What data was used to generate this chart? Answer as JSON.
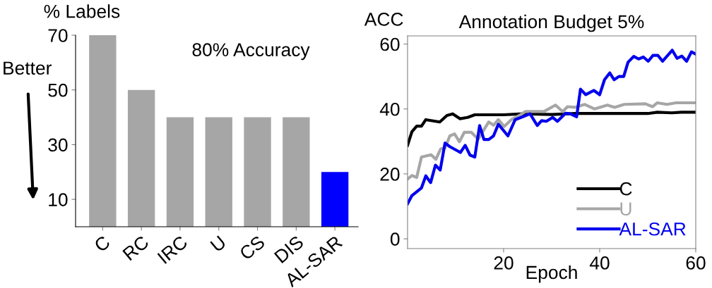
{
  "chart_data": [
    {
      "type": "bar",
      "title": "80% Accuracy",
      "ylabel": "% Labels",
      "categories": [
        "C",
        "RC",
        "IRC",
        "U",
        "CS",
        "DIS",
        "AL-SAR"
      ],
      "values": [
        70,
        50,
        40,
        40,
        40,
        40,
        20
      ],
      "colors": [
        "#a6a6a6",
        "#a6a6a6",
        "#a6a6a6",
        "#a6a6a6",
        "#a6a6a6",
        "#a6a6a6",
        "#0000ff"
      ],
      "ylim": [
        0,
        70
      ],
      "yticks": [
        10,
        30,
        50,
        70
      ],
      "annotations": [
        "Better"
      ],
      "grid": false
    },
    {
      "type": "line",
      "title": "Annotation Budget 5%",
      "xlabel": "Epoch",
      "ylabel": "ACC",
      "xlim": [
        0,
        60
      ],
      "ylim": [
        -3,
        62.5
      ],
      "xticks": [
        20,
        40,
        60
      ],
      "yticks": [
        0,
        20,
        40,
        60
      ],
      "grid": false,
      "legend": "bottom right",
      "marker": "none",
      "line_style": "solid",
      "series": [
        {
          "name": "C",
          "color": "#000000",
          "x": [
            0,
            0.9,
            1.9,
            2.9,
            3.8,
            6.7,
            8.2,
            9.4,
            10.9,
            12.5,
            14,
            20,
            24,
            30,
            35,
            40,
            50,
            52,
            55,
            57,
            60
          ],
          "values": [
            28.8,
            33,
            34.7,
            34.7,
            36.7,
            36,
            38,
            38.5,
            37,
            37.4,
            38.2,
            38.2,
            38.5,
            38.3,
            38.6,
            38.6,
            38.6,
            39,
            38.8,
            39,
            39
          ]
        },
        {
          "name": "U",
          "color": "#a6a6a6",
          "x": [
            0,
            0.9,
            1.9,
            2.9,
            4.9,
            5.9,
            6.9,
            7.8,
            8.8,
            9.8,
            10.8,
            11.8,
            13.3,
            14.7,
            16.9,
            17.9,
            18.9,
            20.1,
            21.6,
            23.5,
            24.5,
            28.4,
            30.8,
            32.3,
            33.3,
            34.8,
            36.9,
            38.9,
            41.6,
            43.1,
            45.1,
            49.5,
            51,
            52,
            54,
            55.9,
            59.8
          ],
          "values": [
            18.4,
            19.5,
            18.9,
            25.2,
            25.9,
            24.5,
            27.7,
            28,
            31.7,
            32.3,
            29.9,
            32.8,
            32.8,
            30.7,
            36,
            35,
            36.7,
            34.6,
            36.7,
            38.2,
            39.2,
            39.2,
            41.2,
            39.2,
            40.7,
            40.5,
            41.4,
            40,
            41.2,
            40.5,
            41.4,
            41.6,
            40.7,
            41.9,
            41.4,
            41.9,
            41.9
          ]
        },
        {
          "name": "AL-SAR",
          "color": "#0000ee",
          "x": [
            0,
            0.9,
            2.9,
            3.8,
            4.8,
            5.8,
            6.8,
            7.8,
            8.8,
            11,
            12,
            13,
            14,
            15,
            15.9,
            16.9,
            17.9,
            18.9,
            20.9,
            22.4,
            24,
            25.5,
            27,
            27.9,
            28.9,
            30.2,
            31.2,
            32.9,
            33.9,
            35.2,
            36,
            37.1,
            38.8,
            40,
            41,
            42.1,
            43,
            44,
            45,
            45.9,
            47.1,
            48.1,
            49.1,
            50.1,
            51.1,
            52.1,
            53.1,
            55.1,
            56.1,
            57.1,
            58.1,
            59.1,
            60
          ],
          "values": [
            10.8,
            13.3,
            15.7,
            19.4,
            17.3,
            22.7,
            21.2,
            29.5,
            28.4,
            26.6,
            28.8,
            25.8,
            25.2,
            34.9,
            30.6,
            30.6,
            31.7,
            35.3,
            31.7,
            36.7,
            37.6,
            38.5,
            34.9,
            36.4,
            36.2,
            37.4,
            36.2,
            38.7,
            38.5,
            37.6,
            46.1,
            44.4,
            45.7,
            44.4,
            49,
            51.1,
            49,
            50,
            50,
            54.4,
            56.2,
            55.4,
            56,
            54.7,
            56.5,
            56.5,
            54.7,
            58.1,
            55.6,
            56.3,
            54.7,
            57.6,
            56.9
          ]
        }
      ]
    }
  ]
}
